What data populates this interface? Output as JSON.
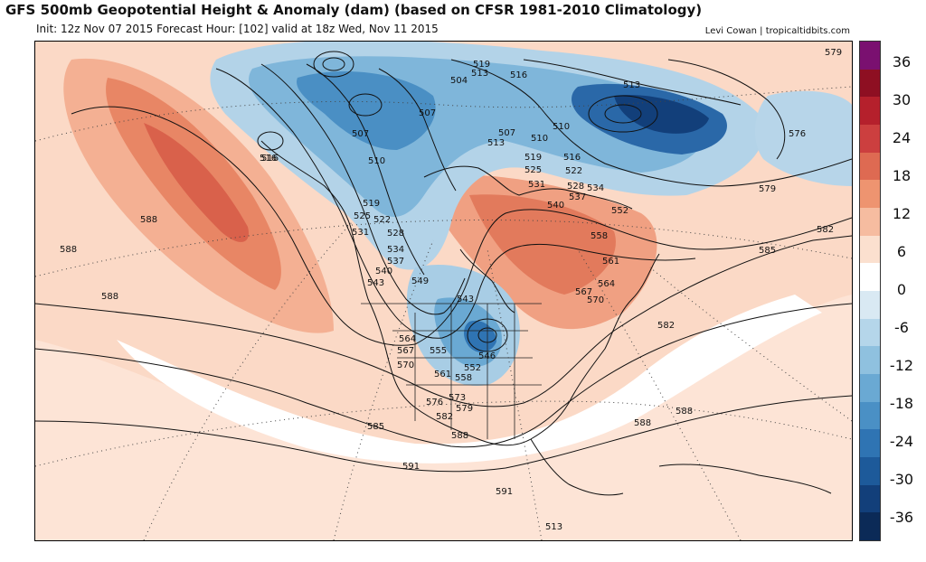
{
  "header": {
    "title": "GFS 500mb Geopotential Height & Anomaly (dam) (based on CFSR 1981-2010 Climatology)",
    "init_line": "Init: 12z Nov 07 2015   Forecast Hour: [102]   valid at 18z Wed, Nov 11 2015",
    "credit": "Levi Cowan | tropicaltidbits.com"
  },
  "colorbar": {
    "labels": [
      "36",
      "30",
      "24",
      "18",
      "12",
      "6",
      "0",
      "-6",
      "-12",
      "-18",
      "-24",
      "-30",
      "-36"
    ],
    "colors": [
      "#7a1070",
      "#8e0f22",
      "#b5202c",
      "#cc3f3f",
      "#de6a52",
      "#ee9470",
      "#f6bca0",
      "#fbe0cf",
      "#ffffff",
      "#d9e9f3",
      "#b5d6ea",
      "#8fc1df",
      "#6aa9d3",
      "#4a90c5",
      "#2f74b3",
      "#1d5a9a",
      "#123f7a",
      "#0b2a57"
    ]
  },
  "contour_labels": {
    "l519": "519",
    "l513a": "513",
    "l516a": "516",
    "l504": "504",
    "l513b": "513",
    "l507a": "507",
    "l507b": "507",
    "l507c": "507",
    "l510a": "510",
    "l516b": "516",
    "l510b": "510",
    "l516c": "516",
    "l513c": "513",
    "l510c": "510",
    "l519b": "519",
    "l525a": "525",
    "l522a": "522",
    "l531a": "531",
    "l528a": "528",
    "l537": "537",
    "l534a": "534",
    "l540a": "540",
    "l552a": "552",
    "l558": "558",
    "l561": "561",
    "l564a": "564",
    "l567a": "567",
    "l570a": "570",
    "l519c": "519",
    "l525b": "525",
    "l522b": "522",
    "l531b": "531",
    "l528b": "528",
    "l534b": "534",
    "l537b": "537",
    "l540b": "540",
    "l543a": "543",
    "l549": "549",
    "l543b": "543",
    "l546": "546",
    "l552b": "552",
    "l555": "555",
    "l558b": "558",
    "l561b": "561",
    "l564b": "564",
    "l567b": "567",
    "l570b": "570",
    "l573": "573",
    "l576a": "576",
    "l579a": "579",
    "l582a": "582",
    "l585a": "585",
    "l588a": "588",
    "l588b": "588",
    "l588c": "588",
    "l588d": "588",
    "l588e": "588",
    "l588f": "588",
    "l591a": "591",
    "l591b": "591",
    "l579b": "579",
    "l576b": "576",
    "l579c": "579",
    "l582b": "582",
    "l585b": "585",
    "l582c": "582",
    "l516d": "516",
    "l513d": "513"
  }
}
